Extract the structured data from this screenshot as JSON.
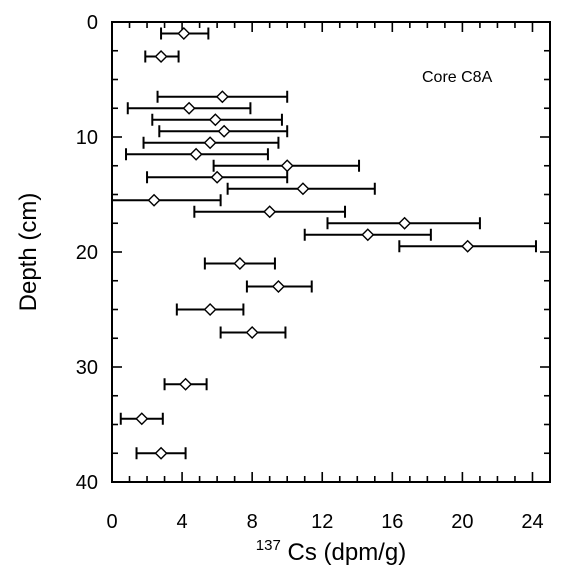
{
  "chart_data": {
    "type": "scatter",
    "orientation": "depth-profile",
    "annotation": "Core C8A",
    "ylabel": "Depth (cm)",
    "xlabel_superscript": "137",
    "xlabel_main": "Cs (dpm/g)",
    "xlim": [
      0,
      25
    ],
    "ylim": [
      0,
      40
    ],
    "y_inverted": true,
    "x_ticks": [
      "0",
      "4",
      "8",
      "12",
      "16",
      "20",
      "24"
    ],
    "y_ticks": [
      "0",
      "10",
      "20",
      "30",
      "40"
    ],
    "grid": false,
    "marker": "open-diamond",
    "points": [
      {
        "depth": 1,
        "value": 4.1,
        "err_low": 2.8,
        "err_high": 5.5
      },
      {
        "depth": 3,
        "value": 2.8,
        "err_low": 1.9,
        "err_high": 3.8
      },
      {
        "depth": 6.5,
        "value": 6.3,
        "err_low": 2.6,
        "err_high": 10.0
      },
      {
        "depth": 7.5,
        "value": 4.4,
        "err_low": 0.9,
        "err_high": 7.9
      },
      {
        "depth": 8.5,
        "value": 5.9,
        "err_low": 2.3,
        "err_high": 9.7
      },
      {
        "depth": 9.5,
        "value": 6.4,
        "err_low": 2.7,
        "err_high": 10.0
      },
      {
        "depth": 10.5,
        "value": 5.6,
        "err_low": 1.8,
        "err_high": 9.5
      },
      {
        "depth": 11.5,
        "value": 4.8,
        "err_low": 0.8,
        "err_high": 8.9
      },
      {
        "depth": 12.5,
        "value": 10.0,
        "err_low": 5.8,
        "err_high": 14.1
      },
      {
        "depth": 13.5,
        "value": 6.0,
        "err_low": 2.0,
        "err_high": 10.0
      },
      {
        "depth": 14.5,
        "value": 10.9,
        "err_low": 6.6,
        "err_high": 15.0
      },
      {
        "depth": 15.5,
        "value": 2.4,
        "err_low": 0.0,
        "err_high": 6.2
      },
      {
        "depth": 16.5,
        "value": 9.0,
        "err_low": 4.7,
        "err_high": 13.3
      },
      {
        "depth": 17.5,
        "value": 16.7,
        "err_low": 12.3,
        "err_high": 21.0
      },
      {
        "depth": 18.5,
        "value": 14.6,
        "err_low": 11.0,
        "err_high": 18.2
      },
      {
        "depth": 19.5,
        "value": 20.3,
        "err_low": 16.4,
        "err_high": 24.2
      },
      {
        "depth": 21,
        "value": 7.3,
        "err_low": 5.3,
        "err_high": 9.3
      },
      {
        "depth": 23,
        "value": 9.5,
        "err_low": 7.7,
        "err_high": 11.4
      },
      {
        "depth": 25,
        "value": 5.6,
        "err_low": 3.7,
        "err_high": 7.5
      },
      {
        "depth": 27,
        "value": 8.0,
        "err_low": 6.2,
        "err_high": 9.9
      },
      {
        "depth": 31.5,
        "value": 4.2,
        "err_low": 3.0,
        "err_high": 5.4
      },
      {
        "depth": 34.5,
        "value": 1.7,
        "err_low": 0.5,
        "err_high": 2.9
      },
      {
        "depth": 37.5,
        "value": 2.8,
        "err_low": 1.4,
        "err_high": 4.2
      }
    ]
  }
}
